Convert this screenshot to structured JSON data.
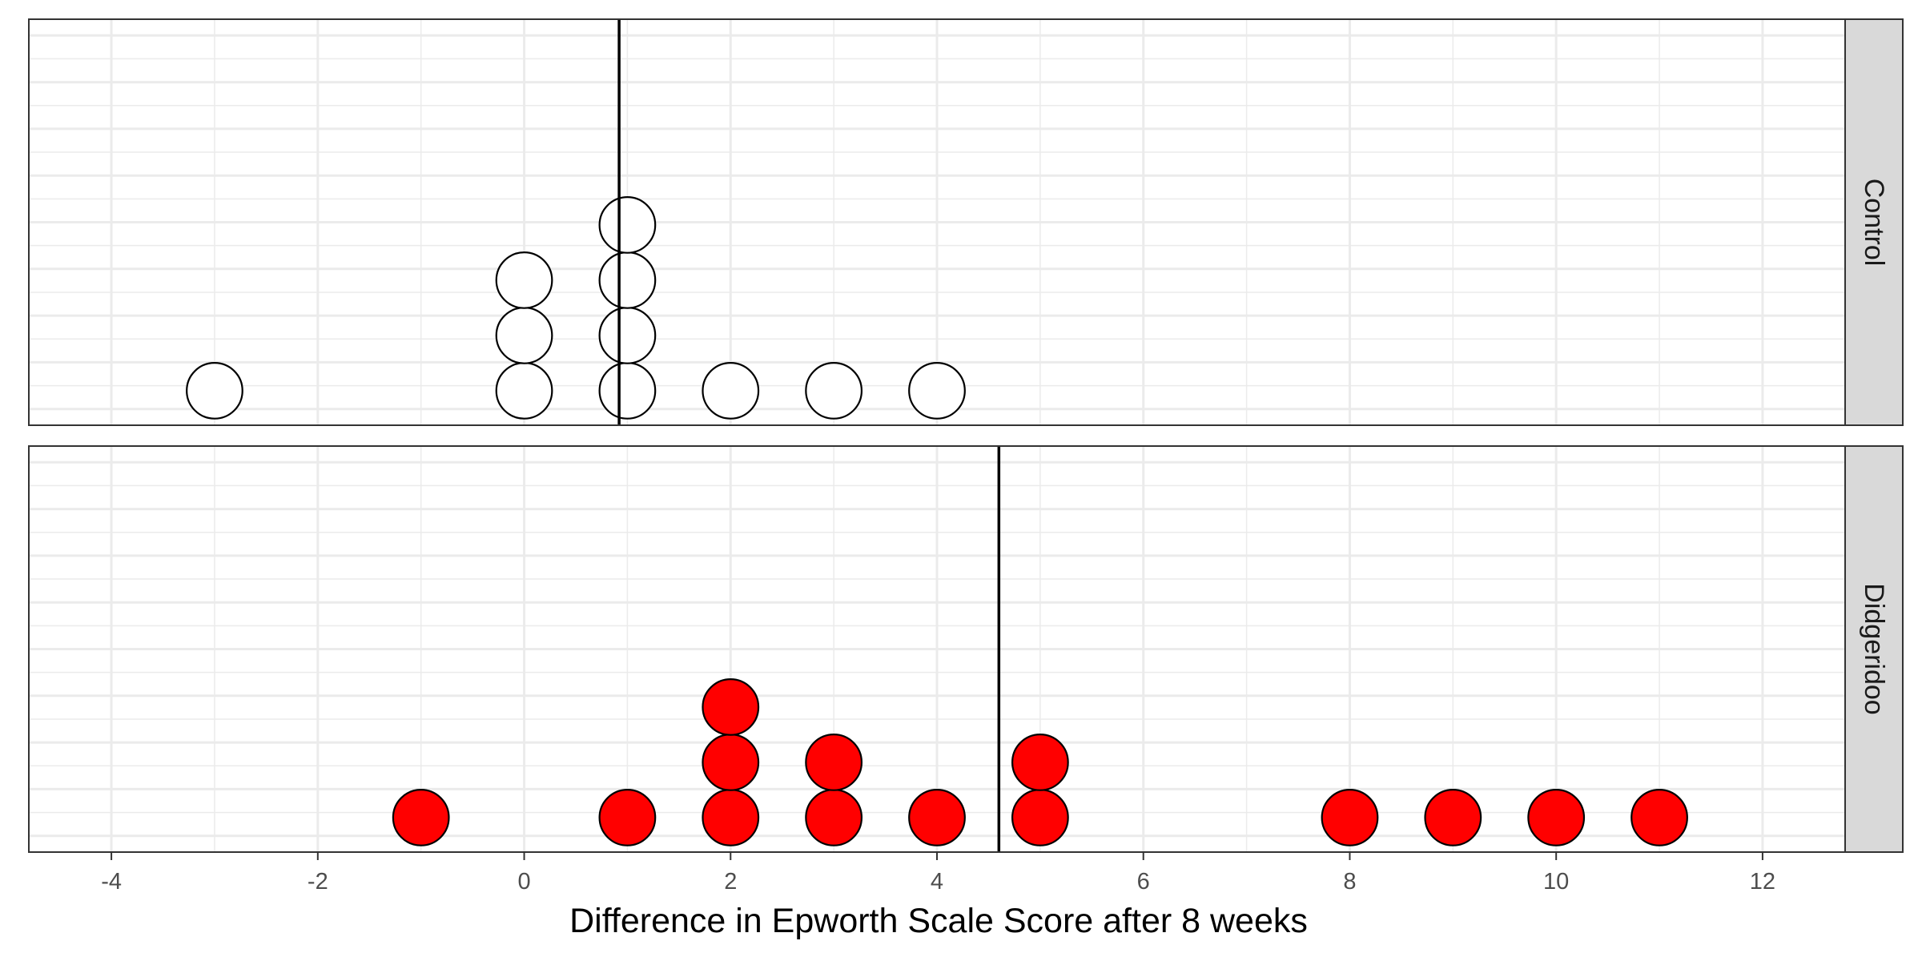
{
  "chart_data": {
    "type": "scatter",
    "subtype": "dot-plot (faceted)",
    "xlabel": "Difference in Epworth Scale Score after 8 weeks",
    "ylabel": "",
    "xlim": [
      -4.8,
      12.8
    ],
    "x_ticks": [
      -4,
      -2,
      0,
      2,
      4,
      6,
      8,
      10,
      12
    ],
    "x_tick_labels": [
      "-4",
      "-2",
      "0",
      "2",
      "4",
      "6",
      "8",
      "10",
      "12"
    ],
    "grid": true,
    "legend": "none",
    "facets": [
      {
        "name": "Control",
        "fill": "#ffffff",
        "stroke": "#000000",
        "mean_line": 0.92,
        "points": [
          {
            "x": -3,
            "count": 1
          },
          {
            "x": 0,
            "count": 3
          },
          {
            "x": 1,
            "count": 4
          },
          {
            "x": 2,
            "count": 1
          },
          {
            "x": 3,
            "count": 1
          },
          {
            "x": 4,
            "count": 1
          }
        ]
      },
      {
        "name": "Didgeridoo",
        "fill": "#ff0000",
        "stroke": "#000000",
        "mean_line": 4.6,
        "points": [
          {
            "x": -1,
            "count": 1
          },
          {
            "x": 1,
            "count": 1
          },
          {
            "x": 2,
            "count": 3
          },
          {
            "x": 3,
            "count": 2
          },
          {
            "x": 4,
            "count": 1
          },
          {
            "x": 5,
            "count": 2
          },
          {
            "x": 8,
            "count": 1
          },
          {
            "x": 9,
            "count": 1
          },
          {
            "x": 10,
            "count": 1
          },
          {
            "x": 11,
            "count": 1
          }
        ]
      }
    ]
  }
}
